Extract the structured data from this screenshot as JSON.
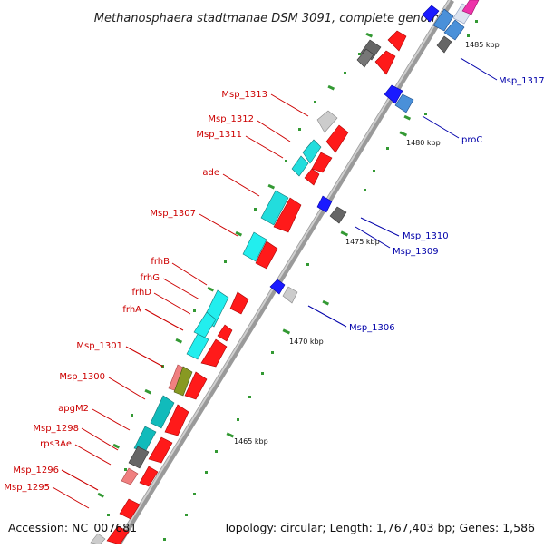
{
  "title": "Methanosphaera stadtmanae DSM 3091, complete genome",
  "accession": "Accession: NC_007681",
  "topology": "Topology: circular; Length: 1,767,403 bp; Genes: 1,586",
  "colors": {
    "forward_label": "#cc0000",
    "reverse_label": "#0000aa",
    "backbone": "#888888",
    "tick": "#339933",
    "red_gene": "#ff1a1a",
    "blue_gene": "#1a1aff",
    "cyan_gene": "#22dddd",
    "teal_gene": "#11bbbb",
    "steel_gene": "#4a90d9",
    "grey_gene": "#666666",
    "lightgrey_gene": "#cccccc",
    "pink_gene": "#f08080",
    "olive_gene": "#889922",
    "magenta_gene": "#ee33aa"
  },
  "kbp_labels": [
    "1485 kbp",
    "1480 kbp",
    "1475 kbp",
    "1470 kbp",
    "1465 kbp"
  ],
  "forward_labels": [
    "Msp_1313",
    "Msp_1312",
    "Msp_1311",
    "ade",
    "Msp_1307",
    "frhB",
    "frhG",
    "frhD",
    "frhA",
    "Msp_1301",
    "Msp_1300",
    "apgM2",
    "Msp_1298",
    "rps3Ae",
    "Msp_1296",
    "Msp_1295"
  ],
  "reverse_labels": [
    "Msp_1317",
    "proC",
    "Msp_1310",
    "Msp_1309",
    "Msp_1306"
  ]
}
